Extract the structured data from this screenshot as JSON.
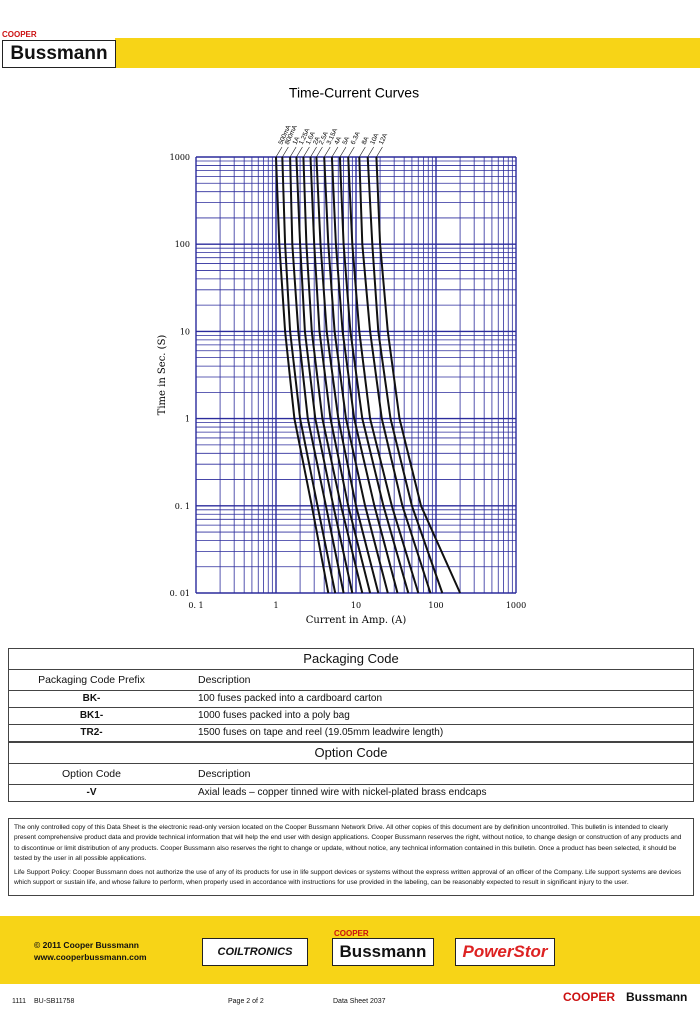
{
  "header": {
    "brand_top": "COOPER",
    "brand": "Bussmann"
  },
  "chart_data": {
    "type": "line",
    "title": "Time-Current Curves",
    "x_label": "Current in Amp. (A)",
    "y_label": "Time in Sec. (S)",
    "log_x": true,
    "log_y": true,
    "grid": true,
    "minor_grid": true,
    "grid_color": "#2b2b9c",
    "line_color": "#111111",
    "xlim": [
      0.1,
      1000
    ],
    "ylim": [
      0.01,
      1000
    ],
    "xticks": [
      {
        "value": 0.1,
        "label": "0. 1"
      },
      1,
      10,
      100,
      1000
    ],
    "yticks": [
      {
        "value": 0.01,
        "label": "0. 01"
      },
      {
        "value": 0.1,
        "label": "0. 1"
      },
      1,
      10,
      100,
      1000
    ],
    "series": [
      {
        "name": "500mA",
        "x": [
          1.0,
          1.1,
          1.3,
          1.7,
          2.8,
          4.5
        ],
        "values": [
          1000,
          100,
          10,
          1,
          0.1,
          0.01
        ]
      },
      {
        "name": "800mA",
        "x": [
          1.2,
          1.3,
          1.5,
          2.0,
          3.3,
          5.5
        ],
        "values": [
          1000,
          100,
          10,
          1,
          0.1,
          0.01
        ]
      },
      {
        "name": "1A",
        "x": [
          1.5,
          1.6,
          1.9,
          2.5,
          4.2,
          7
        ],
        "values": [
          1000,
          100,
          10,
          1,
          0.1,
          0.01
        ]
      },
      {
        "name": "1.25A",
        "x": [
          1.8,
          2.0,
          2.3,
          3.1,
          5.2,
          9
        ],
        "values": [
          1000,
          100,
          10,
          1,
          0.1,
          0.01
        ]
      },
      {
        "name": "1.6A",
        "x": [
          2.2,
          2.4,
          2.8,
          3.8,
          6.5,
          12
        ],
        "values": [
          1000,
          100,
          10,
          1,
          0.1,
          0.01
        ]
      },
      {
        "name": "2A",
        "x": [
          2.7,
          3.0,
          3.5,
          4.8,
          8,
          15
        ],
        "values": [
          1000,
          100,
          10,
          1,
          0.1,
          0.01
        ]
      },
      {
        "name": "2.5A",
        "x": [
          3.2,
          3.6,
          4.3,
          6,
          10,
          19
        ],
        "values": [
          1000,
          100,
          10,
          1,
          0.1,
          0.01
        ]
      },
      {
        "name": "3.15A",
        "x": [
          4,
          4.5,
          5.4,
          7.5,
          13,
          25
        ],
        "values": [
          1000,
          100,
          10,
          1,
          0.1,
          0.01
        ]
      },
      {
        "name": "4A",
        "x": [
          5,
          5.6,
          6.8,
          9.5,
          17,
          33
        ],
        "values": [
          1000,
          100,
          10,
          1,
          0.1,
          0.01
        ]
      },
      {
        "name": "5A",
        "x": [
          6.3,
          7,
          8.5,
          12,
          22,
          45
        ],
        "values": [
          1000,
          100,
          10,
          1,
          0.1,
          0.01
        ]
      },
      {
        "name": "6.3A",
        "x": [
          8,
          9,
          11,
          15,
          28,
          60
        ],
        "values": [
          1000,
          100,
          10,
          1,
          0.1,
          0.01
        ]
      },
      {
        "name": "8A",
        "x": [
          11,
          12,
          15,
          21,
          38,
          85
        ],
        "values": [
          1000,
          100,
          10,
          1,
          0.1,
          0.01
        ]
      },
      {
        "name": "10A",
        "x": [
          14,
          16,
          19,
          27,
          50,
          120
        ],
        "values": [
          1000,
          100,
          10,
          1,
          0.1,
          0.01
        ]
      },
      {
        "name": "12A",
        "x": [
          18,
          20,
          25,
          35,
          65,
          200
        ],
        "values": [
          1000,
          100,
          10,
          1,
          0.1,
          0.01
        ]
      }
    ]
  },
  "packaging": {
    "title": "Packaging Code",
    "columns": [
      "Packaging Code Prefix",
      "Description"
    ],
    "rows": [
      [
        "BK-",
        "100 fuses packed into a cardboard carton"
      ],
      [
        "BK1-",
        "1000 fuses packed into a poly bag"
      ],
      [
        "TR2-",
        "1500 fuses on tape and reel (19.05mm leadwire length)"
      ]
    ]
  },
  "options": {
    "title": "Option Code",
    "columns": [
      "Option Code",
      "Description"
    ],
    "rows": [
      [
        "-V",
        "Axial leads – copper tinned wire with nickel-plated brass endcaps"
      ]
    ]
  },
  "notes": [
    "The only controlled copy of this Data Sheet is the electronic read-only version located on the Cooper Bussmann Network Drive. All other copies of this document are by definition uncontrolled. This bulletin is intended to clearly present comprehensive product data and provide technical information that will help the end user with design applications. Cooper Bussmann reserves the right, without notice, to change design or construction of any products and to discontinue or limit distribution of any products. Cooper Bussmann also reserves the right to change or update, without notice, any technical information contained in this bulletin. Once a product has been selected, it should be tested by the user in all possible applications.",
    "Life Support Policy: Cooper Bussmann does not authorize the use of any of its products for use in life support devices or systems without the express written approval of an officer of the Company. Life support systems are devices which support or sustain life, and whose failure to perform, when properly used in accordance with instructions for use provided in the labeling, can be reasonably expected to result in significant injury to the user."
  ],
  "footer": {
    "copyright": "© 2011 Cooper Bussmann",
    "website": "www.cooperbussmann.com",
    "logo_coiltronics": "COILTRONICS",
    "logo_cooper": "COOPER",
    "logo_bussmann": "Bussmann",
    "logo_powerstor": "PowerStor",
    "doc_code": "1111",
    "doc_id": "BU-SB11758",
    "page": "Page 2 of 2",
    "sheet": "Data Sheet 2037",
    "corner_top": "COOPER",
    "corner": "Bussmann"
  }
}
